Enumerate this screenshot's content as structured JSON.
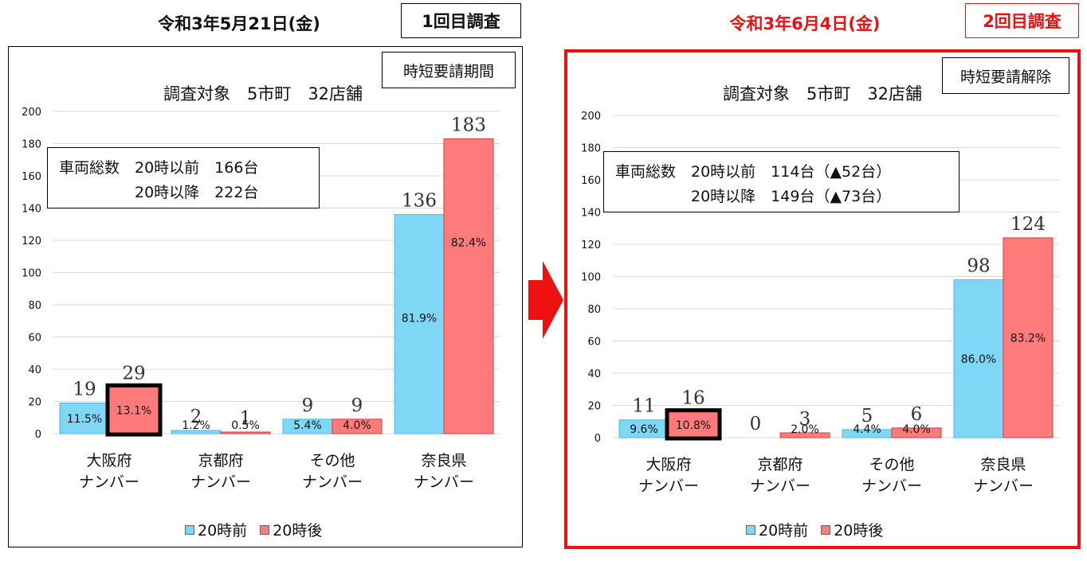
{
  "colors": {
    "before": "#7ed7f5",
    "after": "#ff7b7b",
    "before_border": "#55b9e0",
    "after_border": "#d93b3b",
    "highlight_red": "#ee1111"
  },
  "arrow_icon": "right-arrow-icon",
  "panels": [
    {
      "date": "令和3年5月21日(金)",
      "survey_label": "1回目調査",
      "status_label": "時短要請期間",
      "title": "調査対象　5市町　32店舗",
      "summary": {
        "line1": "車両総数　20時以前　166台",
        "line2": "　　　　　20時以降　222台"
      },
      "chart_data": {
        "type": "bar",
        "categories": [
          {
            "line1": "大阪府",
            "line2": "ナンバー"
          },
          {
            "line1": "京都府",
            "line2": "ナンバー"
          },
          {
            "line1": "その他",
            "line2": "ナンバー"
          },
          {
            "line1": "奈良県",
            "line2": "ナンバー"
          }
        ],
        "series": [
          {
            "name": "20時前",
            "values": [
              19,
              2,
              9,
              136
            ],
            "labels": [
              "19",
              "2",
              "9",
              "136"
            ],
            "percents": [
              "11.5%",
              "1.2%",
              "5.4%",
              "81.9%"
            ]
          },
          {
            "name": "20時後",
            "values": [
              29,
              1,
              9,
              183
            ],
            "labels": [
              "29",
              "1",
              "9",
              "183"
            ],
            "percents": [
              "13.1%",
              "0.5%",
              "4.0%",
              "82.4%"
            ]
          }
        ],
        "ylim": [
          0,
          200
        ],
        "yticks": [
          0,
          20,
          40,
          60,
          80,
          100,
          120,
          140,
          160,
          180,
          200
        ],
        "grid": true,
        "legend": "bottom",
        "highlight": {
          "series": 1,
          "category": 0
        }
      }
    },
    {
      "date": "令和3年6月4日(金)",
      "survey_label": "2回目調査",
      "status_label": "時短要請解除",
      "title": "調査対象　5市町　32店舗",
      "summary": {
        "line1": "車両総数　20時以前　114台（▲52台）",
        "line2": "　　　　　20時以降　149台（▲73台）"
      },
      "chart_data": {
        "type": "bar",
        "categories": [
          {
            "line1": "大阪府",
            "line2": "ナンバー"
          },
          {
            "line1": "京都府",
            "line2": "ナンバー"
          },
          {
            "line1": "その他",
            "line2": "ナンバー"
          },
          {
            "line1": "奈良県",
            "line2": "ナンバー"
          }
        ],
        "series": [
          {
            "name": "20時前",
            "values": [
              11,
              0,
              5,
              98
            ],
            "labels": [
              "11",
              "0",
              "5",
              "98"
            ],
            "percents": [
              "9.6%",
              "",
              "4.4%",
              "86.0%"
            ]
          },
          {
            "name": "20時後",
            "values": [
              16,
              3,
              6,
              124
            ],
            "labels": [
              "16",
              "3",
              "6",
              "124"
            ],
            "percents": [
              "10.8%",
              "2.0%",
              "4.0%",
              "83.2%"
            ]
          }
        ],
        "ylim": [
          0,
          200
        ],
        "yticks": [
          0,
          20,
          40,
          60,
          80,
          100,
          120,
          140,
          160,
          180,
          200
        ],
        "grid": true,
        "legend": "bottom",
        "highlight": {
          "series": 1,
          "category": 0
        }
      }
    }
  ]
}
